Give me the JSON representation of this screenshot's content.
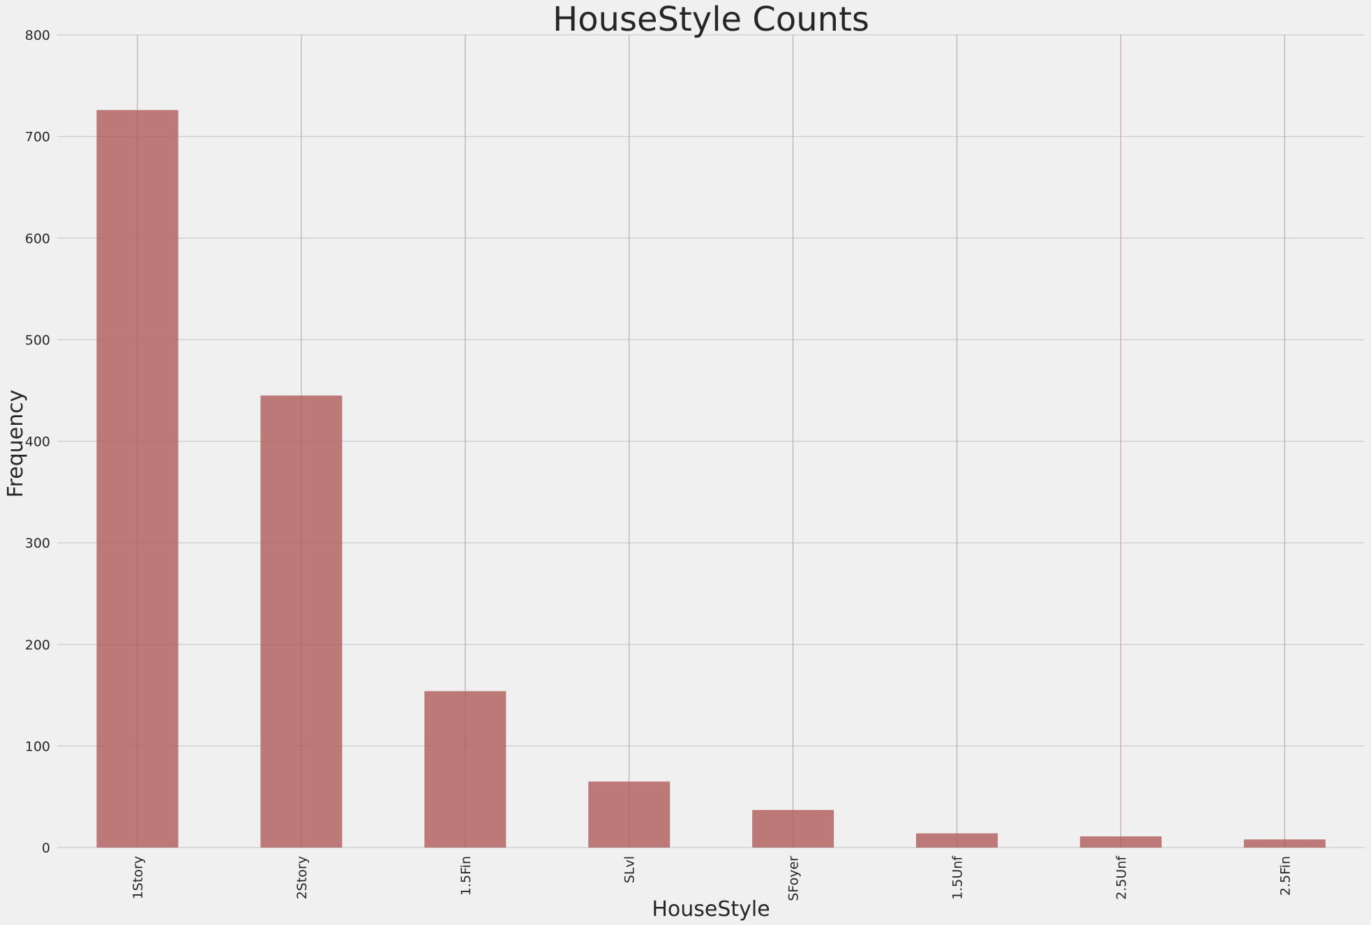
{
  "chart_data": {
    "type": "bar",
    "title": "HouseStyle Counts",
    "xlabel": "HouseStyle",
    "ylabel": "Frequency",
    "categories": [
      "1Story",
      "2Story",
      "1.5Fin",
      "SLvl",
      "SFoyer",
      "1.5Unf",
      "2.5Unf",
      "2.5Fin"
    ],
    "values": [
      726,
      445,
      154,
      65,
      37,
      14,
      11,
      8
    ],
    "ylim": [
      0,
      800
    ],
    "yticks": [
      0,
      100,
      200,
      300,
      400,
      500,
      600,
      700,
      800
    ],
    "grid": true,
    "legend": "none",
    "bar_color": "#b05a5a",
    "background_color": "#f0f0f0",
    "grid_color": "#cbcbcb"
  }
}
